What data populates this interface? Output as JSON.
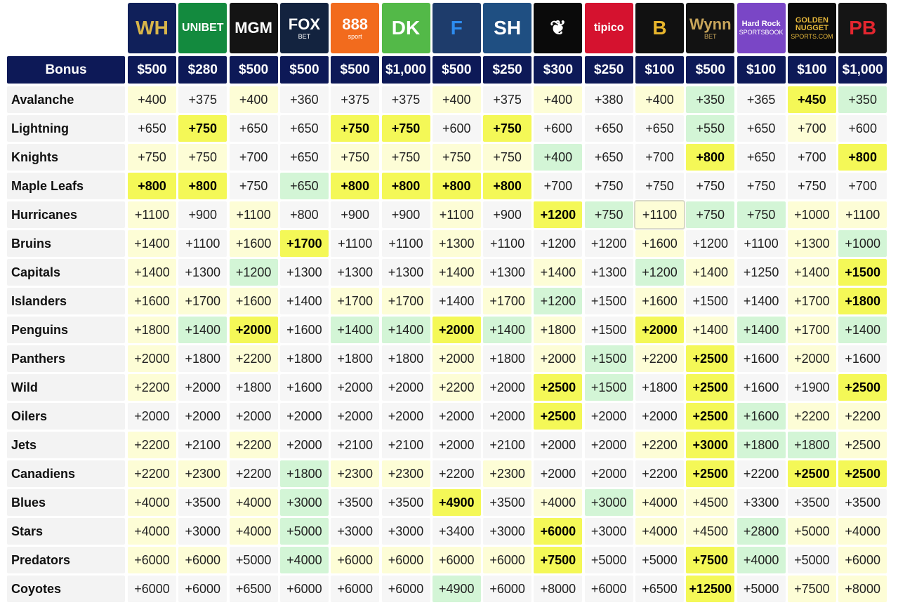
{
  "bonus_label": "Bonus",
  "books": [
    {
      "name": "william-hill",
      "text": "WH",
      "sub": "",
      "bg": "#10205a",
      "fg": "#d8b54a"
    },
    {
      "name": "unibet",
      "text": "UNIBET",
      "sub": "",
      "bg": "#138a3e",
      "fg": "#ffffff"
    },
    {
      "name": "mgm",
      "text": "MGM",
      "sub": "",
      "bg": "#141414",
      "fg": "#ffffff"
    },
    {
      "name": "fox-bet",
      "text": "FOX",
      "sub": "BET",
      "bg": "#13233f",
      "fg": "#ffffff"
    },
    {
      "name": "888-sport",
      "text": "888",
      "sub": "sport",
      "bg": "#f26b1d",
      "fg": "#ffffff"
    },
    {
      "name": "draftkings",
      "text": "DK",
      "sub": "",
      "bg": "#53b948",
      "fg": "#ffffff"
    },
    {
      "name": "fanduel",
      "text": "F",
      "sub": "",
      "bg": "#1e3c6b",
      "fg": "#2d8cf0"
    },
    {
      "name": "sugarhouse",
      "text": "SH",
      "sub": "",
      "bg": "#1f4f82",
      "fg": "#ffffff"
    },
    {
      "name": "caesars",
      "text": "❦",
      "sub": "",
      "bg": "#0a0a0a",
      "fg": "#ffffff"
    },
    {
      "name": "tipico",
      "text": "tipico",
      "sub": "",
      "bg": "#d5122f",
      "fg": "#ffffff"
    },
    {
      "name": "borgata",
      "text": "B",
      "sub": "",
      "bg": "#111111",
      "fg": "#e7b52c"
    },
    {
      "name": "wynn-bet",
      "text": "Wynn",
      "sub": "BET",
      "bg": "#121212",
      "fg": "#c8a55a"
    },
    {
      "name": "hard-rock",
      "text": "Hard Rock",
      "sub": "SPORTSBOOK",
      "bg": "#7a46c6",
      "fg": "#ffffff"
    },
    {
      "name": "golden-nugget",
      "text": "GOLDEN NUGGET",
      "sub": "SPORTS.COM",
      "bg": "#0c0c0c",
      "fg": "#e6b83a"
    },
    {
      "name": "pointsbet",
      "text": "PB",
      "sub": "",
      "bg": "#151515",
      "fg": "#e3262f"
    }
  ],
  "bonuses": [
    "$500",
    "$280",
    "$500",
    "$500",
    "$500",
    "$1,000",
    "$500",
    "$250",
    "$300",
    "$250",
    "$100",
    "$500",
    "$100",
    "$100",
    "$1,000"
  ],
  "teams": [
    "Avalanche",
    "Lightning",
    "Knights",
    "Maple Leafs",
    "Hurricanes",
    "Bruins",
    "Capitals",
    "Islanders",
    "Penguins",
    "Panthers",
    "Wild",
    "Oilers",
    "Jets",
    "Canadiens",
    "Blues",
    "Stars",
    "Predators",
    "Coyotes"
  ],
  "odds": [
    [
      "+400",
      "+375",
      "+400",
      "+360",
      "+375",
      "+375",
      "+400",
      "+375",
      "+400",
      "+380",
      "+400",
      "+350",
      "+365",
      "+450",
      "+350"
    ],
    [
      "+650",
      "+750",
      "+650",
      "+650",
      "+750",
      "+750",
      "+600",
      "+750",
      "+600",
      "+650",
      "+650",
      "+550",
      "+650",
      "+700",
      "+600"
    ],
    [
      "+750",
      "+750",
      "+700",
      "+650",
      "+750",
      "+750",
      "+750",
      "+750",
      "+400",
      "+650",
      "+700",
      "+800",
      "+650",
      "+700",
      "+800"
    ],
    [
      "+800",
      "+800",
      "+750",
      "+650",
      "+800",
      "+800",
      "+800",
      "+800",
      "+700",
      "+750",
      "+750",
      "+750",
      "+750",
      "+750",
      "+700"
    ],
    [
      "+1100",
      "+900",
      "+1100",
      "+800",
      "+900",
      "+900",
      "+1100",
      "+900",
      "+1200",
      "+750",
      "+1100",
      "+750",
      "+750",
      "+1000",
      "+1100"
    ],
    [
      "+1400",
      "+1100",
      "+1600",
      "+1700",
      "+1100",
      "+1100",
      "+1300",
      "+1100",
      "+1200",
      "+1200",
      "+1600",
      "+1200",
      "+1100",
      "+1300",
      "+1000"
    ],
    [
      "+1400",
      "+1300",
      "+1200",
      "+1300",
      "+1300",
      "+1300",
      "+1400",
      "+1300",
      "+1400",
      "+1300",
      "+1200",
      "+1400",
      "+1250",
      "+1400",
      "+1500"
    ],
    [
      "+1600",
      "+1700",
      "+1600",
      "+1400",
      "+1700",
      "+1700",
      "+1400",
      "+1700",
      "+1200",
      "+1500",
      "+1600",
      "+1500",
      "+1400",
      "+1700",
      "+1800"
    ],
    [
      "+1800",
      "+1400",
      "+2000",
      "+1600",
      "+1400",
      "+1400",
      "+2000",
      "+1400",
      "+1800",
      "+1500",
      "+2000",
      "+1400",
      "+1400",
      "+1700",
      "+1400"
    ],
    [
      "+2000",
      "+1800",
      "+2200",
      "+1800",
      "+1800",
      "+1800",
      "+2000",
      "+1800",
      "+2000",
      "+1500",
      "+2200",
      "+2500",
      "+1600",
      "+2000",
      "+1600"
    ],
    [
      "+2200",
      "+2000",
      "+1800",
      "+1600",
      "+2000",
      "+2000",
      "+2200",
      "+2000",
      "+2500",
      "+1500",
      "+1800",
      "+2500",
      "+1600",
      "+1900",
      "+2500"
    ],
    [
      "+2000",
      "+2000",
      "+2000",
      "+2000",
      "+2000",
      "+2000",
      "+2000",
      "+2000",
      "+2500",
      "+2000",
      "+2000",
      "+2500",
      "+1600",
      "+2200",
      "+2200"
    ],
    [
      "+2200",
      "+2100",
      "+2200",
      "+2000",
      "+2100",
      "+2100",
      "+2000",
      "+2100",
      "+2000",
      "+2000",
      "+2200",
      "+3000",
      "+1800",
      "+1800",
      "+2500"
    ],
    [
      "+2200",
      "+2300",
      "+2200",
      "+1800",
      "+2300",
      "+2300",
      "+2200",
      "+2300",
      "+2000",
      "+2000",
      "+2200",
      "+2500",
      "+2200",
      "+2500",
      "+2500"
    ],
    [
      "+4000",
      "+3500",
      "+4000",
      "+3000",
      "+3500",
      "+3500",
      "+4900",
      "+3500",
      "+4000",
      "+3000",
      "+4000",
      "+4500",
      "+3300",
      "+3500",
      "+3500"
    ],
    [
      "+4000",
      "+3000",
      "+4000",
      "+5000",
      "+3000",
      "+3000",
      "+3400",
      "+3000",
      "+6000",
      "+3000",
      "+4000",
      "+4500",
      "+2800",
      "+5000",
      "+4000"
    ],
    [
      "+6000",
      "+6000",
      "+5000",
      "+4000",
      "+6000",
      "+6000",
      "+6000",
      "+6000",
      "+7500",
      "+5000",
      "+5000",
      "+7500",
      "+4000",
      "+5000",
      "+6000"
    ],
    [
      "+6000",
      "+6000",
      "+6500",
      "+6000",
      "+6000",
      "+6000",
      "+4900",
      "+6000",
      "+8000",
      "+6000",
      "+6500",
      "+12500",
      "+5000",
      "+7500",
      "+8000"
    ]
  ],
  "shade": [
    [
      1,
      0,
      1,
      0,
      0,
      0,
      1,
      0,
      1,
      0,
      1,
      3,
      0,
      2,
      3
    ],
    [
      0,
      2,
      0,
      0,
      2,
      2,
      0,
      2,
      0,
      0,
      0,
      3,
      0,
      1,
      0
    ],
    [
      1,
      1,
      0,
      0,
      1,
      1,
      1,
      1,
      3,
      0,
      0,
      2,
      0,
      0,
      2
    ],
    [
      2,
      2,
      0,
      3,
      2,
      2,
      2,
      2,
      0,
      0,
      0,
      0,
      0,
      0,
      0
    ],
    [
      1,
      0,
      1,
      0,
      0,
      0,
      1,
      0,
      2,
      3,
      1,
      3,
      3,
      1,
      1
    ],
    [
      1,
      0,
      1,
      2,
      0,
      0,
      1,
      0,
      0,
      0,
      1,
      0,
      0,
      1,
      3
    ],
    [
      1,
      0,
      3,
      0,
      0,
      0,
      1,
      0,
      1,
      0,
      3,
      1,
      0,
      1,
      2
    ],
    [
      1,
      1,
      1,
      0,
      1,
      1,
      0,
      1,
      3,
      0,
      1,
      0,
      0,
      1,
      2
    ],
    [
      1,
      3,
      2,
      0,
      3,
      3,
      2,
      3,
      1,
      0,
      2,
      1,
      3,
      1,
      3
    ],
    [
      1,
      0,
      1,
      0,
      0,
      0,
      1,
      0,
      1,
      3,
      1,
      2,
      0,
      1,
      0
    ],
    [
      1,
      0,
      0,
      0,
      0,
      0,
      1,
      0,
      2,
      3,
      0,
      2,
      0,
      0,
      2
    ],
    [
      0,
      0,
      0,
      0,
      0,
      0,
      0,
      0,
      2,
      0,
      0,
      2,
      3,
      1,
      1
    ],
    [
      1,
      0,
      1,
      0,
      0,
      0,
      0,
      0,
      0,
      0,
      1,
      2,
      3,
      3,
      1
    ],
    [
      1,
      1,
      0,
      3,
      1,
      1,
      0,
      1,
      0,
      0,
      0,
      2,
      0,
      2,
      2
    ],
    [
      1,
      0,
      1,
      3,
      0,
      0,
      2,
      0,
      1,
      3,
      1,
      1,
      0,
      0,
      0
    ],
    [
      1,
      0,
      1,
      3,
      0,
      0,
      0,
      0,
      2,
      0,
      1,
      1,
      3,
      1,
      1
    ],
    [
      1,
      1,
      0,
      3,
      1,
      1,
      1,
      1,
      2,
      0,
      0,
      2,
      3,
      0,
      1
    ],
    [
      0,
      0,
      0,
      0,
      0,
      0,
      3,
      0,
      0,
      0,
      0,
      2,
      0,
      1,
      1
    ]
  ],
  "highlight_cell": [
    4,
    10
  ]
}
